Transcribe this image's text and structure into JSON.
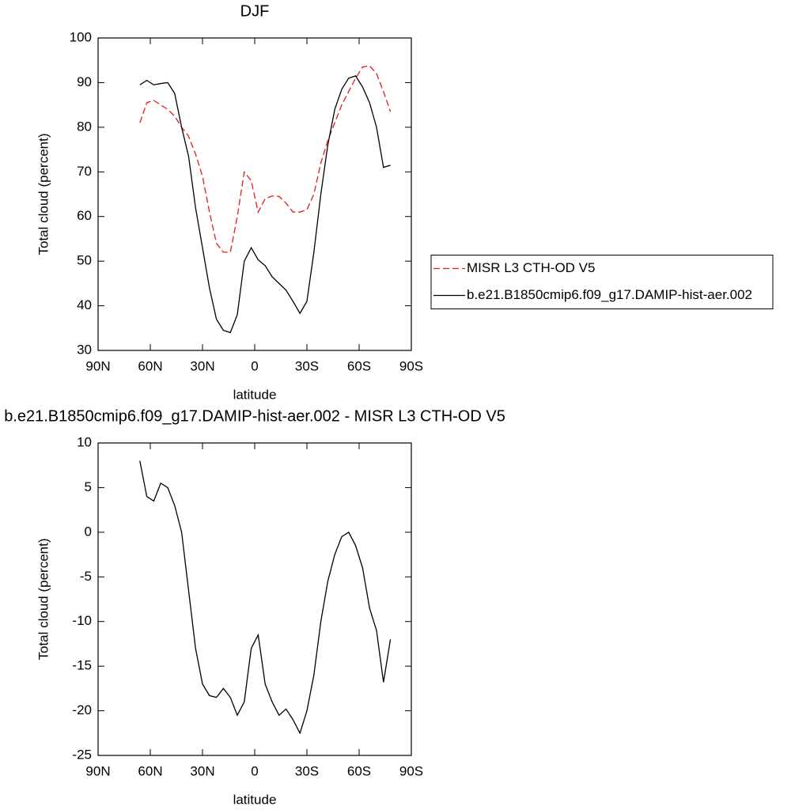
{
  "chart_data": [
    {
      "type": "line",
      "title": "DJF",
      "xlabel": "latitude",
      "ylabel": "Total cloud (percent)",
      "x": [
        66,
        62,
        58,
        54,
        50,
        46,
        42,
        38,
        34,
        30,
        26,
        22,
        18,
        14,
        10,
        6,
        2,
        -2,
        -6,
        -10,
        -14,
        -18,
        -22,
        -26,
        -30,
        -34,
        -38,
        -42,
        -46,
        -50,
        -54,
        -58,
        -62,
        -66,
        -70,
        -74,
        -78
      ],
      "series": [
        {
          "name": "MISR L3 CTH-OD V5",
          "color": "#e41a1c",
          "dashed": true,
          "values": [
            81,
            85.5,
            86,
            85,
            84,
            82.5,
            80,
            78,
            74,
            69,
            61,
            54,
            52,
            52,
            60,
            70,
            68,
            61,
            64,
            64.6,
            64.5,
            63,
            61,
            61,
            61.5,
            65,
            72,
            77,
            81,
            85,
            88,
            91,
            93.5,
            93.8,
            92,
            88,
            83.5
          ]
        },
        {
          "name": "b.e21.B1850cmip6.f09_g17.DAMIP-hist-aer.002",
          "color": "#000000",
          "dashed": false,
          "values": [
            89.5,
            90.5,
            89.5,
            89.8,
            90,
            87.6,
            80,
            73.5,
            62,
            53,
            44,
            37,
            34.5,
            34,
            38,
            50,
            53,
            50.3,
            49,
            46.5,
            45,
            43.5,
            41,
            38.3,
            41,
            52,
            65,
            76,
            84,
            88.5,
            91,
            91.5,
            89,
            85.5,
            80,
            71,
            71.5
          ]
        }
      ],
      "xlim": [
        90,
        -90
      ],
      "xticks": [
        {
          "value": 90,
          "label": "90N"
        },
        {
          "value": 60,
          "label": "60N"
        },
        {
          "value": 30,
          "label": "30N"
        },
        0,
        {
          "value": -30,
          "label": "30S"
        },
        {
          "value": -60,
          "label": "60S"
        },
        {
          "value": -90,
          "label": "90S"
        }
      ],
      "ylim": [
        30,
        100
      ],
      "yticks": [
        30,
        40,
        50,
        60,
        70,
        80,
        90,
        100
      ],
      "legend": "right"
    },
    {
      "type": "line",
      "title": "b.e21.B1850cmip6.f09_g17.DAMIP-hist-aer.002 - MISR L3 CTH-OD V5",
      "xlabel": "latitude",
      "ylabel": "Total cloud (percent)",
      "x": [
        66,
        62,
        58,
        54,
        50,
        46,
        42,
        38,
        34,
        30,
        26,
        22,
        18,
        14,
        10,
        6,
        2,
        -2,
        -6,
        -10,
        -14,
        -18,
        -22,
        -26,
        -30,
        -34,
        -38,
        -42,
        -46,
        -50,
        -54,
        -58,
        -62,
        -66,
        -70,
        -74,
        -78
      ],
      "series": [
        {
          "color": "#000000",
          "dashed": false,
          "values": [
            8,
            4,
            3.5,
            5.5,
            5,
            3,
            0,
            -6.5,
            -13,
            -17,
            -18.3,
            -18.5,
            -17.5,
            -18.5,
            -20.5,
            -19,
            -13,
            -11.5,
            -17,
            -19,
            -20.5,
            -19.8,
            -21,
            -22.5,
            -20,
            -16,
            -10,
            -5.5,
            -2.5,
            -0.5,
            0,
            -1.5,
            -4,
            -8.5,
            -11,
            -16.8,
            -12
          ]
        }
      ],
      "xlim": [
        90,
        -90
      ],
      "xticks": [
        {
          "value": 90,
          "label": "90N"
        },
        {
          "value": 60,
          "label": "60N"
        },
        {
          "value": 30,
          "label": "30N"
        },
        0,
        {
          "value": -30,
          "label": "30S"
        },
        {
          "value": -60,
          "label": "60S"
        },
        {
          "value": -90,
          "label": "90S"
        }
      ],
      "ylim": [
        -25,
        10
      ],
      "yticks": [
        -25,
        -20,
        -15,
        -10,
        -5,
        0,
        5,
        10
      ]
    }
  ]
}
